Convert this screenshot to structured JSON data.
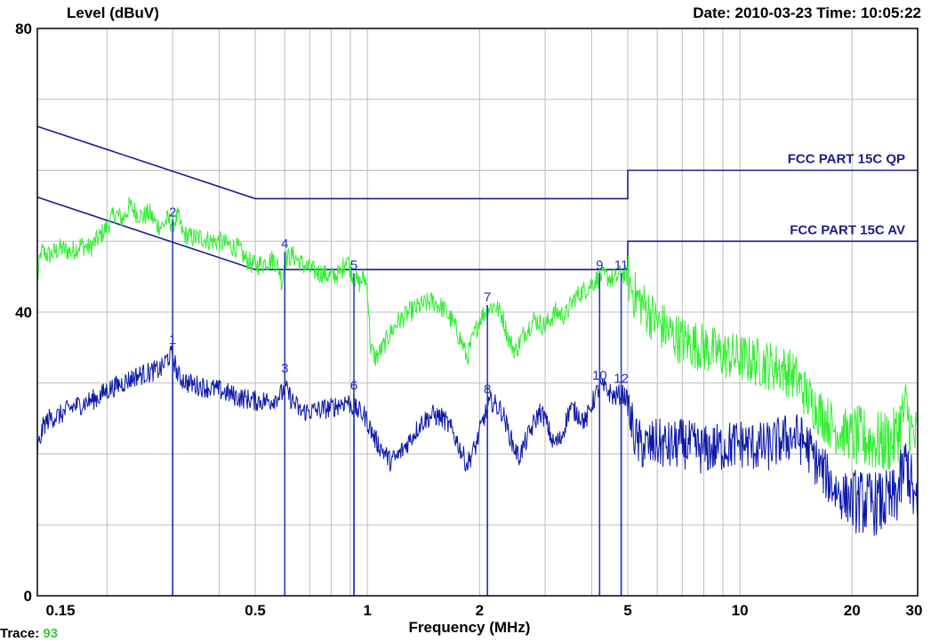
{
  "header": {
    "level_label": "Level (dBuV)",
    "date_time": "Date: 2010-03-23  Time: 10:05:22"
  },
  "footer": {
    "trace_label": "Trace:",
    "trace_value": "93"
  },
  "colors": {
    "limit": "#1c1c8c",
    "peak": "#33ee33",
    "average": "#0d1aa8",
    "marker": "#2233bb",
    "grid": "#bdbdbd"
  },
  "chart_data": {
    "type": "line",
    "title": "",
    "xlabel": "Frequency (MHz)",
    "ylabel": "Level (dBuV)",
    "xscale": "log",
    "xlim": [
      0.13,
      30
    ],
    "ylim": [
      0,
      80
    ],
    "xticks": [
      {
        "v": 0.15,
        "t": "0.15"
      },
      {
        "v": 0.5,
        "t": "0.5"
      },
      {
        "v": 1,
        "t": "1"
      },
      {
        "v": 2,
        "t": "2"
      },
      {
        "v": 5,
        "t": "5"
      },
      {
        "v": 10,
        "t": "10"
      },
      {
        "v": 20,
        "t": "20"
      },
      {
        "v": 30,
        "t": "30"
      }
    ],
    "yticks": [
      {
        "v": 0,
        "t": "0"
      },
      {
        "v": 40,
        "t": "40"
      },
      {
        "v": 80,
        "t": "80"
      }
    ],
    "grid": true,
    "limit_lines": [
      {
        "name": "FCC PART 15C QP",
        "points": [
          [
            0.13,
            66.2
          ],
          [
            0.5,
            56
          ],
          [
            5,
            56
          ],
          [
            5,
            60
          ],
          [
            30,
            60
          ]
        ]
      },
      {
        "name": "FCC PART 15C AV",
        "points": [
          [
            0.13,
            56.2
          ],
          [
            0.5,
            46
          ],
          [
            5,
            46
          ],
          [
            5,
            50
          ],
          [
            30,
            50
          ]
        ]
      }
    ],
    "series": [
      {
        "trace": "peak",
        "points": [
          [
            0.13,
            44.5
          ],
          [
            0.133,
            48.5
          ],
          [
            0.14,
            48
          ],
          [
            0.15,
            49
          ],
          [
            0.16,
            48.5
          ],
          [
            0.17,
            49.5
          ],
          [
            0.18,
            49
          ],
          [
            0.19,
            50.5
          ],
          [
            0.2,
            52
          ],
          [
            0.21,
            54
          ],
          [
            0.22,
            53
          ],
          [
            0.23,
            55
          ],
          [
            0.24,
            54
          ],
          [
            0.25,
            53.5
          ],
          [
            0.26,
            54
          ],
          [
            0.27,
            52.5
          ],
          [
            0.28,
            52
          ],
          [
            0.29,
            53
          ],
          [
            0.3,
            52.5
          ],
          [
            0.31,
            53.5
          ],
          [
            0.32,
            51
          ],
          [
            0.34,
            50.5
          ],
          [
            0.36,
            50.5
          ],
          [
            0.38,
            50
          ],
          [
            0.4,
            50
          ],
          [
            0.42,
            49.5
          ],
          [
            0.45,
            49
          ],
          [
            0.47,
            47.5
          ],
          [
            0.5,
            46.5
          ],
          [
            0.53,
            47
          ],
          [
            0.56,
            47.5
          ],
          [
            0.58,
            46
          ],
          [
            0.59,
            44
          ],
          [
            0.6,
            47.5
          ],
          [
            0.63,
            48
          ],
          [
            0.66,
            47
          ],
          [
            0.7,
            46
          ],
          [
            0.75,
            45.5
          ],
          [
            0.8,
            45
          ],
          [
            0.85,
            45.5
          ],
          [
            0.88,
            48
          ],
          [
            0.9,
            46
          ],
          [
            0.93,
            44.5
          ],
          [
            0.95,
            44
          ],
          [
            0.98,
            45
          ],
          [
            1.0,
            43.5
          ],
          [
            1.02,
            35
          ],
          [
            1.05,
            33.5
          ],
          [
            1.1,
            35
          ],
          [
            1.15,
            37
          ],
          [
            1.2,
            38.5
          ],
          [
            1.3,
            40
          ],
          [
            1.4,
            41
          ],
          [
            1.5,
            41.5
          ],
          [
            1.6,
            40.5
          ],
          [
            1.7,
            38.5
          ],
          [
            1.8,
            35.5
          ],
          [
            1.85,
            33.5
          ],
          [
            1.9,
            35.5
          ],
          [
            2.0,
            39
          ],
          [
            2.1,
            40.5
          ],
          [
            2.2,
            41
          ],
          [
            2.3,
            39.5
          ],
          [
            2.4,
            36
          ],
          [
            2.5,
            34.5
          ],
          [
            2.6,
            36.5
          ],
          [
            2.8,
            39
          ],
          [
            3.0,
            38
          ],
          [
            3.2,
            40
          ],
          [
            3.4,
            39.5
          ],
          [
            3.6,
            42
          ],
          [
            3.8,
            43
          ],
          [
            4.0,
            44
          ],
          [
            4.2,
            45
          ],
          [
            4.4,
            45
          ],
          [
            4.6,
            44.5
          ],
          [
            4.8,
            45.5
          ],
          [
            5.0,
            45
          ],
          [
            5.2,
            42.5
          ],
          [
            5.5,
            41
          ],
          [
            6.0,
            38.5
          ],
          [
            6.5,
            37
          ],
          [
            7.0,
            36
          ],
          [
            8.0,
            35
          ],
          [
            9.0,
            34
          ],
          [
            10.0,
            33.5
          ],
          [
            11.0,
            33
          ],
          [
            12.0,
            32.5
          ],
          [
            13.0,
            32
          ],
          [
            14.0,
            31
          ],
          [
            15.0,
            28.5
          ],
          [
            16.0,
            26.5
          ],
          [
            17.0,
            25
          ],
          [
            18.0,
            23.5
          ],
          [
            19.0,
            23
          ],
          [
            20.0,
            22.5
          ],
          [
            22.0,
            22
          ],
          [
            24.0,
            21.5
          ],
          [
            26.0,
            22
          ],
          [
            27.0,
            24.5
          ],
          [
            28.0,
            26.5
          ],
          [
            29.0,
            22.5
          ],
          [
            30.0,
            22
          ]
        ]
      },
      {
        "trace": "average",
        "points": [
          [
            0.13,
            20.5
          ],
          [
            0.135,
            24
          ],
          [
            0.14,
            25
          ],
          [
            0.15,
            25.5
          ],
          [
            0.16,
            26.5
          ],
          [
            0.17,
            27
          ],
          [
            0.18,
            27.5
          ],
          [
            0.19,
            28
          ],
          [
            0.2,
            29
          ],
          [
            0.22,
            30
          ],
          [
            0.24,
            31
          ],
          [
            0.26,
            31.5
          ],
          [
            0.28,
            32
          ],
          [
            0.29,
            33.5
          ],
          [
            0.3,
            34
          ],
          [
            0.31,
            31
          ],
          [
            0.33,
            30
          ],
          [
            0.36,
            29.5
          ],
          [
            0.4,
            29
          ],
          [
            0.45,
            28
          ],
          [
            0.5,
            27.5
          ],
          [
            0.55,
            27.5
          ],
          [
            0.59,
            28.5
          ],
          [
            0.6,
            29.5
          ],
          [
            0.62,
            28
          ],
          [
            0.66,
            26
          ],
          [
            0.7,
            26
          ],
          [
            0.8,
            26.5
          ],
          [
            0.88,
            27.5
          ],
          [
            0.92,
            26.5
          ],
          [
            0.98,
            25.5
          ],
          [
            1.0,
            24.5
          ],
          [
            1.05,
            22
          ],
          [
            1.1,
            20.5
          ],
          [
            1.15,
            19
          ],
          [
            1.2,
            19.5
          ],
          [
            1.3,
            22
          ],
          [
            1.4,
            24.5
          ],
          [
            1.5,
            25.5
          ],
          [
            1.6,
            25
          ],
          [
            1.7,
            23
          ],
          [
            1.8,
            20
          ],
          [
            1.85,
            18.5
          ],
          [
            1.95,
            21
          ],
          [
            2.05,
            25
          ],
          [
            2.15,
            27.5
          ],
          [
            2.3,
            26
          ],
          [
            2.45,
            21.5
          ],
          [
            2.55,
            19.5
          ],
          [
            2.7,
            22.5
          ],
          [
            2.9,
            26
          ],
          [
            3.0,
            25
          ],
          [
            3.15,
            21.5
          ],
          [
            3.3,
            22
          ],
          [
            3.5,
            26.5
          ],
          [
            3.7,
            25.5
          ],
          [
            3.85,
            24.5
          ],
          [
            4.0,
            27
          ],
          [
            4.2,
            29.5
          ],
          [
            4.4,
            29
          ],
          [
            4.6,
            28
          ],
          [
            4.8,
            28.5
          ],
          [
            4.95,
            28
          ],
          [
            5.1,
            24.5
          ],
          [
            5.3,
            21.5
          ],
          [
            5.6,
            21
          ],
          [
            6.0,
            21.5
          ],
          [
            6.5,
            21
          ],
          [
            7.0,
            21.5
          ],
          [
            8.0,
            20.5
          ],
          [
            9.0,
            21
          ],
          [
            10.0,
            21.5
          ],
          [
            11.0,
            21
          ],
          [
            12.0,
            21
          ],
          [
            13.0,
            22
          ],
          [
            14.0,
            22.5
          ],
          [
            15.0,
            21.5
          ],
          [
            16.0,
            19
          ],
          [
            17.0,
            17
          ],
          [
            18.0,
            15
          ],
          [
            19.0,
            14
          ],
          [
            20.0,
            13.5
          ],
          [
            22.0,
            13
          ],
          [
            24.0,
            13
          ],
          [
            26.0,
            13.5
          ],
          [
            27.0,
            16
          ],
          [
            28.0,
            19
          ],
          [
            29.0,
            15
          ],
          [
            30.0,
            11
          ]
        ]
      }
    ],
    "markers": [
      {
        "label": "1",
        "x": 0.3,
        "y": 35.0
      },
      {
        "label": "2",
        "x": 0.3,
        "y": 53.0
      },
      {
        "label": "3",
        "x": 0.6,
        "y": 31.0
      },
      {
        "label": "4",
        "x": 0.6,
        "y": 48.5
      },
      {
        "label": "5",
        "x": 0.92,
        "y": 45.5
      },
      {
        "label": "6",
        "x": 0.92,
        "y": 28.5
      },
      {
        "label": "7",
        "x": 2.1,
        "y": 41.0
      },
      {
        "label": "8",
        "x": 2.1,
        "y": 28.0
      },
      {
        "label": "9",
        "x": 4.2,
        "y": 45.5
      },
      {
        "label": "10",
        "x": 4.2,
        "y": 30.0
      },
      {
        "label": "11",
        "x": 4.8,
        "y": 45.5
      },
      {
        "label": "12",
        "x": 4.8,
        "y": 29.5
      }
    ]
  }
}
